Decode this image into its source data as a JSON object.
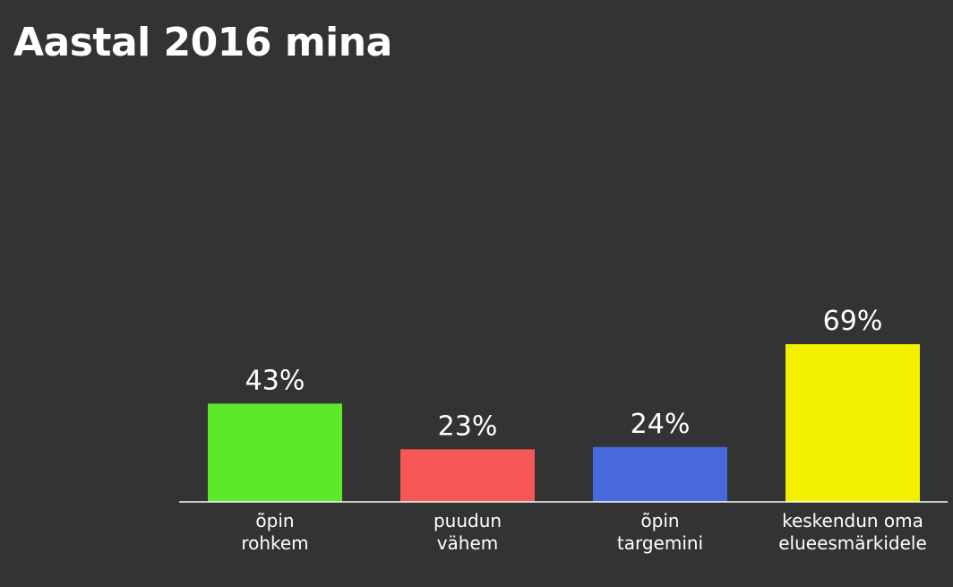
{
  "title": "Aastal 2016 mina",
  "chart_data": {
    "type": "bar",
    "categories": [
      [
        "õpin",
        "rohkem"
      ],
      [
        "puudun",
        "vähem"
      ],
      [
        "õpin",
        "targemini"
      ],
      [
        "keskendun oma",
        "elueesmärkidele"
      ]
    ],
    "values": [
      43,
      23,
      24,
      69
    ],
    "value_labels": [
      "43%",
      "23%",
      "24%",
      "69%"
    ],
    "colors": [
      "#5ce92a",
      "#f75757",
      "#4769dc",
      "#f2f000"
    ],
    "ylim": [
      0,
      100
    ],
    "grid": false,
    "legend": "none",
    "axis_color": "#ffffff"
  }
}
